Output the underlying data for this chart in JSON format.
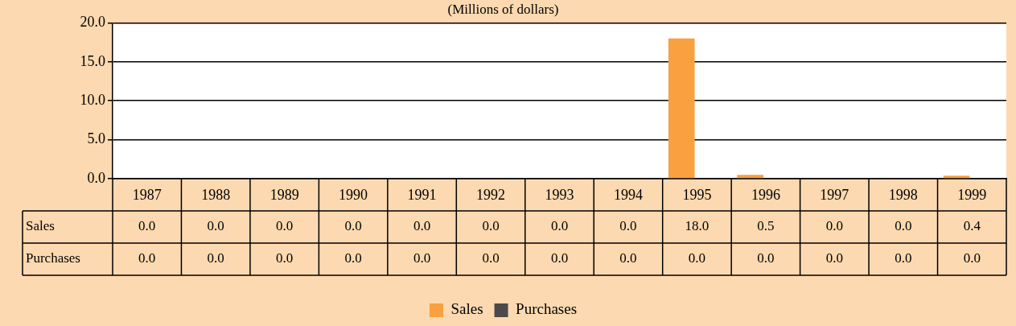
{
  "chart_data": {
    "type": "bar",
    "title": "(Millions of dollars)",
    "categories": [
      "1987",
      "1988",
      "1989",
      "1990",
      "1991",
      "1992",
      "1993",
      "1994",
      "1995",
      "1996",
      "1997",
      "1998",
      "1999"
    ],
    "series": [
      {
        "name": "Sales",
        "color": "#f9a040",
        "values": [
          0,
          0,
          0,
          0,
          0,
          0,
          0,
          0,
          18,
          0.5,
          0,
          0,
          0.4
        ],
        "value_labels": [
          "0.0",
          "0.0",
          "0.0",
          "0.0",
          "0.0",
          "0.0",
          "0.0",
          "0.0",
          "18.0",
          "0.5",
          "0.0",
          "0.0",
          "0.4"
        ]
      },
      {
        "name": "Purchases",
        "color": "#4a4a4a",
        "values": [
          0,
          0,
          0,
          0,
          0,
          0,
          0,
          0,
          0,
          0,
          0,
          0,
          0
        ],
        "value_labels": [
          "0.0",
          "0.0",
          "0.0",
          "0.0",
          "0.0",
          "0.0",
          "0.0",
          "0.0",
          "0.0",
          "0.0",
          "0.0",
          "0.0",
          "0.0"
        ]
      }
    ],
    "ylim": [
      0,
      20
    ],
    "yticks": [
      {
        "value": 0,
        "label": "0.0"
      },
      {
        "value": 5,
        "label": "5.0"
      },
      {
        "value": 10,
        "label": "10.0"
      },
      {
        "value": 15,
        "label": "15.0"
      },
      {
        "value": 20,
        "label": "20.0"
      }
    ],
    "grid": "y",
    "legend": "bottom"
  }
}
